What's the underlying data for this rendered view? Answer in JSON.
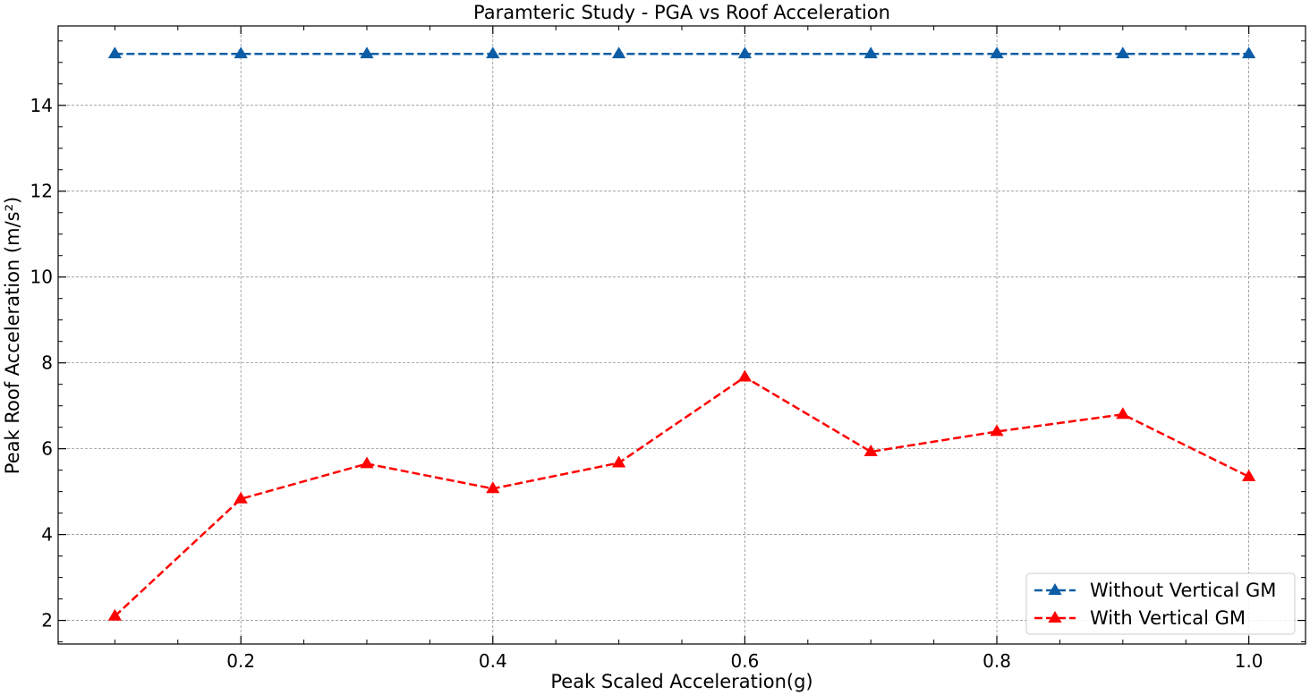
{
  "chart_data": {
    "type": "line",
    "title": "Paramteric Study - PGA vs Roof Acceleration",
    "xlabel": "Peak Scaled Acceleration(g)",
    "ylabel": "Peak Roof Acceleration (m/s²)",
    "x": [
      0.1,
      0.2,
      0.3,
      0.4,
      0.5,
      0.6,
      0.7,
      0.8,
      0.9,
      1.0
    ],
    "xlim": [
      0.055,
      1.045
    ],
    "ylim": [
      1.45,
      15.85
    ],
    "xticks": [
      0.2,
      0.4,
      0.6,
      0.8,
      1.0
    ],
    "xtick_labels": [
      "0.2",
      "0.4",
      "0.6",
      "0.8",
      "1.0"
    ],
    "yticks": [
      2,
      4,
      6,
      8,
      10,
      12,
      14
    ],
    "ytick_labels": [
      "2",
      "4",
      "6",
      "8",
      "10",
      "12",
      "14"
    ],
    "grid": true,
    "legend_position": "bottom-right",
    "series": [
      {
        "name": "Without Vertical GM",
        "color": "#0c5da5",
        "line_style": "dashed",
        "marker": "triangle-up",
        "values": [
          15.2,
          15.2,
          15.2,
          15.2,
          15.2,
          15.2,
          15.2,
          15.2,
          15.2,
          15.2
        ]
      },
      {
        "name": "With Vertical GM",
        "color": "#ff0000",
        "line_style": "dashed",
        "marker": "triangle-up",
        "values": [
          2.1,
          4.83,
          5.65,
          5.07,
          5.67,
          7.67,
          5.93,
          6.4,
          6.8,
          5.35
        ]
      }
    ]
  }
}
